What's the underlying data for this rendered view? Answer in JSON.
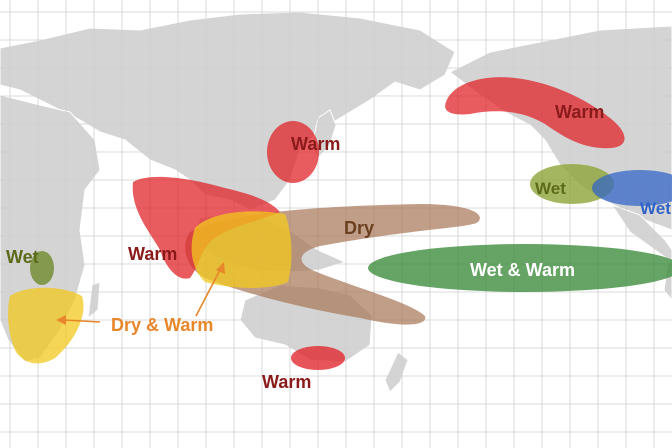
{
  "map": {
    "labels": {
      "warm_alaska": "Warm",
      "warm_japan": "Warm",
      "warm_south_asia": "Warm",
      "warm_tasman": "Warm",
      "dry_pacific": "Dry",
      "wet_warm_pacific": "Wet & Warm",
      "wet_east_africa": "Wet",
      "dry_warm_south_africa": "Dry & Warm",
      "wet_us_south": "Wet",
      "wet_us_southeast": "Wet"
    },
    "colors": {
      "ocean": "#ffffff",
      "land": "#d4d4d4",
      "grid": "#cfcfcf",
      "warm": "#e0252b",
      "warm_label": "#8b1a1a",
      "dry": "#a9795a",
      "dry_label": "#6b4020",
      "wet_green": "#3b8a3b",
      "wet_green_label": "#5c6b1a",
      "wet_blue": "#2f62c8",
      "dry_warm_yellow": "#f3c81e",
      "dry_warm_label": "#e8862a"
    }
  }
}
